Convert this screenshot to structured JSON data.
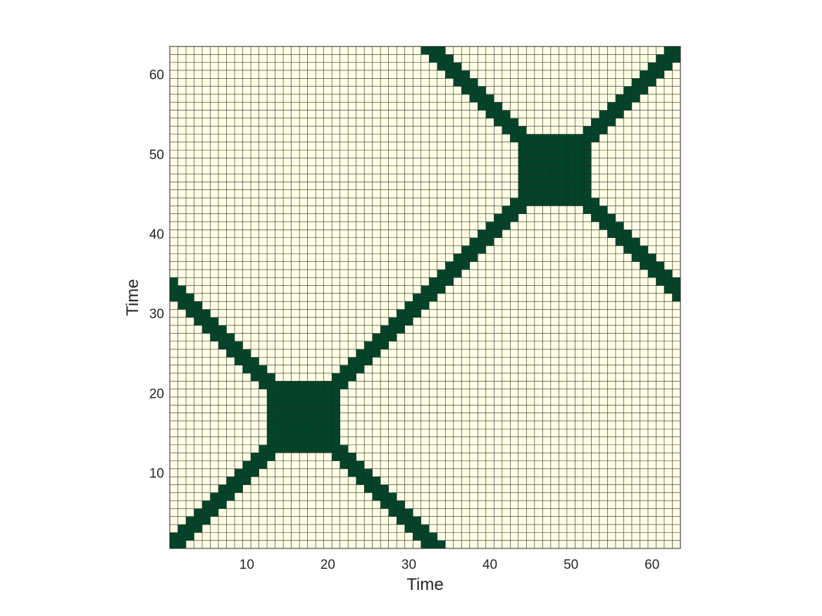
{
  "chart_data": {
    "type": "heatmap",
    "title": "",
    "xlabel": "Time",
    "ylabel": "Time",
    "n": 63,
    "xlim": [
      0.5,
      63.5
    ],
    "ylim": [
      0.5,
      63.5
    ],
    "xticks": [
      10,
      20,
      30,
      40,
      50,
      60
    ],
    "yticks": [
      10,
      20,
      30,
      40,
      50,
      60
    ],
    "grid": true,
    "colors": {
      "recurrent": "#004529",
      "non_recurrent": "#ffffe5",
      "grid": "#262626"
    },
    "recurrence_rule": "cell (i, j) is recurrent when |i - j| <= 1 or i + j in [33, 35] or i + j in [95, 97], or both i and j are in 13..21 or both are in 44..52",
    "values": "binary recurrence matrix: 1 = recurrent (dark), 0 = non-recurrent (light)"
  }
}
